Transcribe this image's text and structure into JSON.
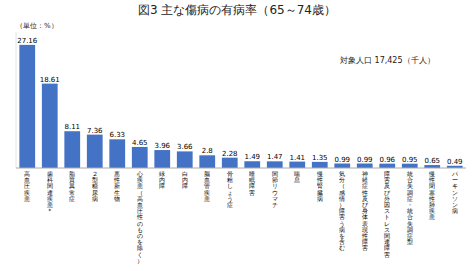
{
  "chart_data": {
    "type": "bar",
    "title": "図3 主な傷病の有病率（65～74歳）",
    "annotations": [
      "（単位：%）",
      "対象人口 17,425（千人）"
    ],
    "categories": [
      "高\n血\n圧\n疾\n患",
      "歯\n科\n関\n連\n疾\n患\n*",
      "脂\n質\n異\n常\n症",
      "２\n型\n糖\n尿\n病",
      "悪\n性\n新\n生\n物",
      "心\n疾\n患\n（\n高\n血\n圧\n性\nの\nも\nの\nを\n除\nく\n）",
      "緑\n内\n障",
      "白\n内\n障",
      "脳\n血\n管\n疾\n患",
      "骨\n粗\nし\nょ\nう\n症",
      "睡\n眠\n障\n害",
      "関\n節\nリ\nウ\nマ\nチ",
      "喘\n息",
      "慢\n性\n腎\n臓\n病",
      "気\n分\n（\n感\n情\n）\n障\n害\nう\n病\nを\n含\nむ",
      "神\n経\n症\n性\n及\nび\n身\n体\n表\n現\n性\n障\n害",
      "障\n害\n及\nび\n外\n因\nス\nト\nレ\nス\n関\n連\n障\n害",
      "統\n合\n失\n調\n症\n・\n統\n合\n失\n調\n症\n型",
      "慢\n性\n閉\n塞\n性\n肺\n疾\n患",
      "パ\nー\nキ\nン\nソ\nン\n病"
    ],
    "values": [
      27.16,
      18.61,
      8.11,
      7.36,
      6.33,
      4.65,
      3.96,
      3.66,
      2.8,
      2.28,
      1.49,
      1.47,
      1.41,
      1.35,
      0.99,
      0.99,
      0.96,
      0.95,
      0.65,
      0.49
    ],
    "color": "#4472C4",
    "ylim": [
      0,
      30
    ],
    "grid": false,
    "data_labels": true,
    "tick_labels": "x"
  }
}
